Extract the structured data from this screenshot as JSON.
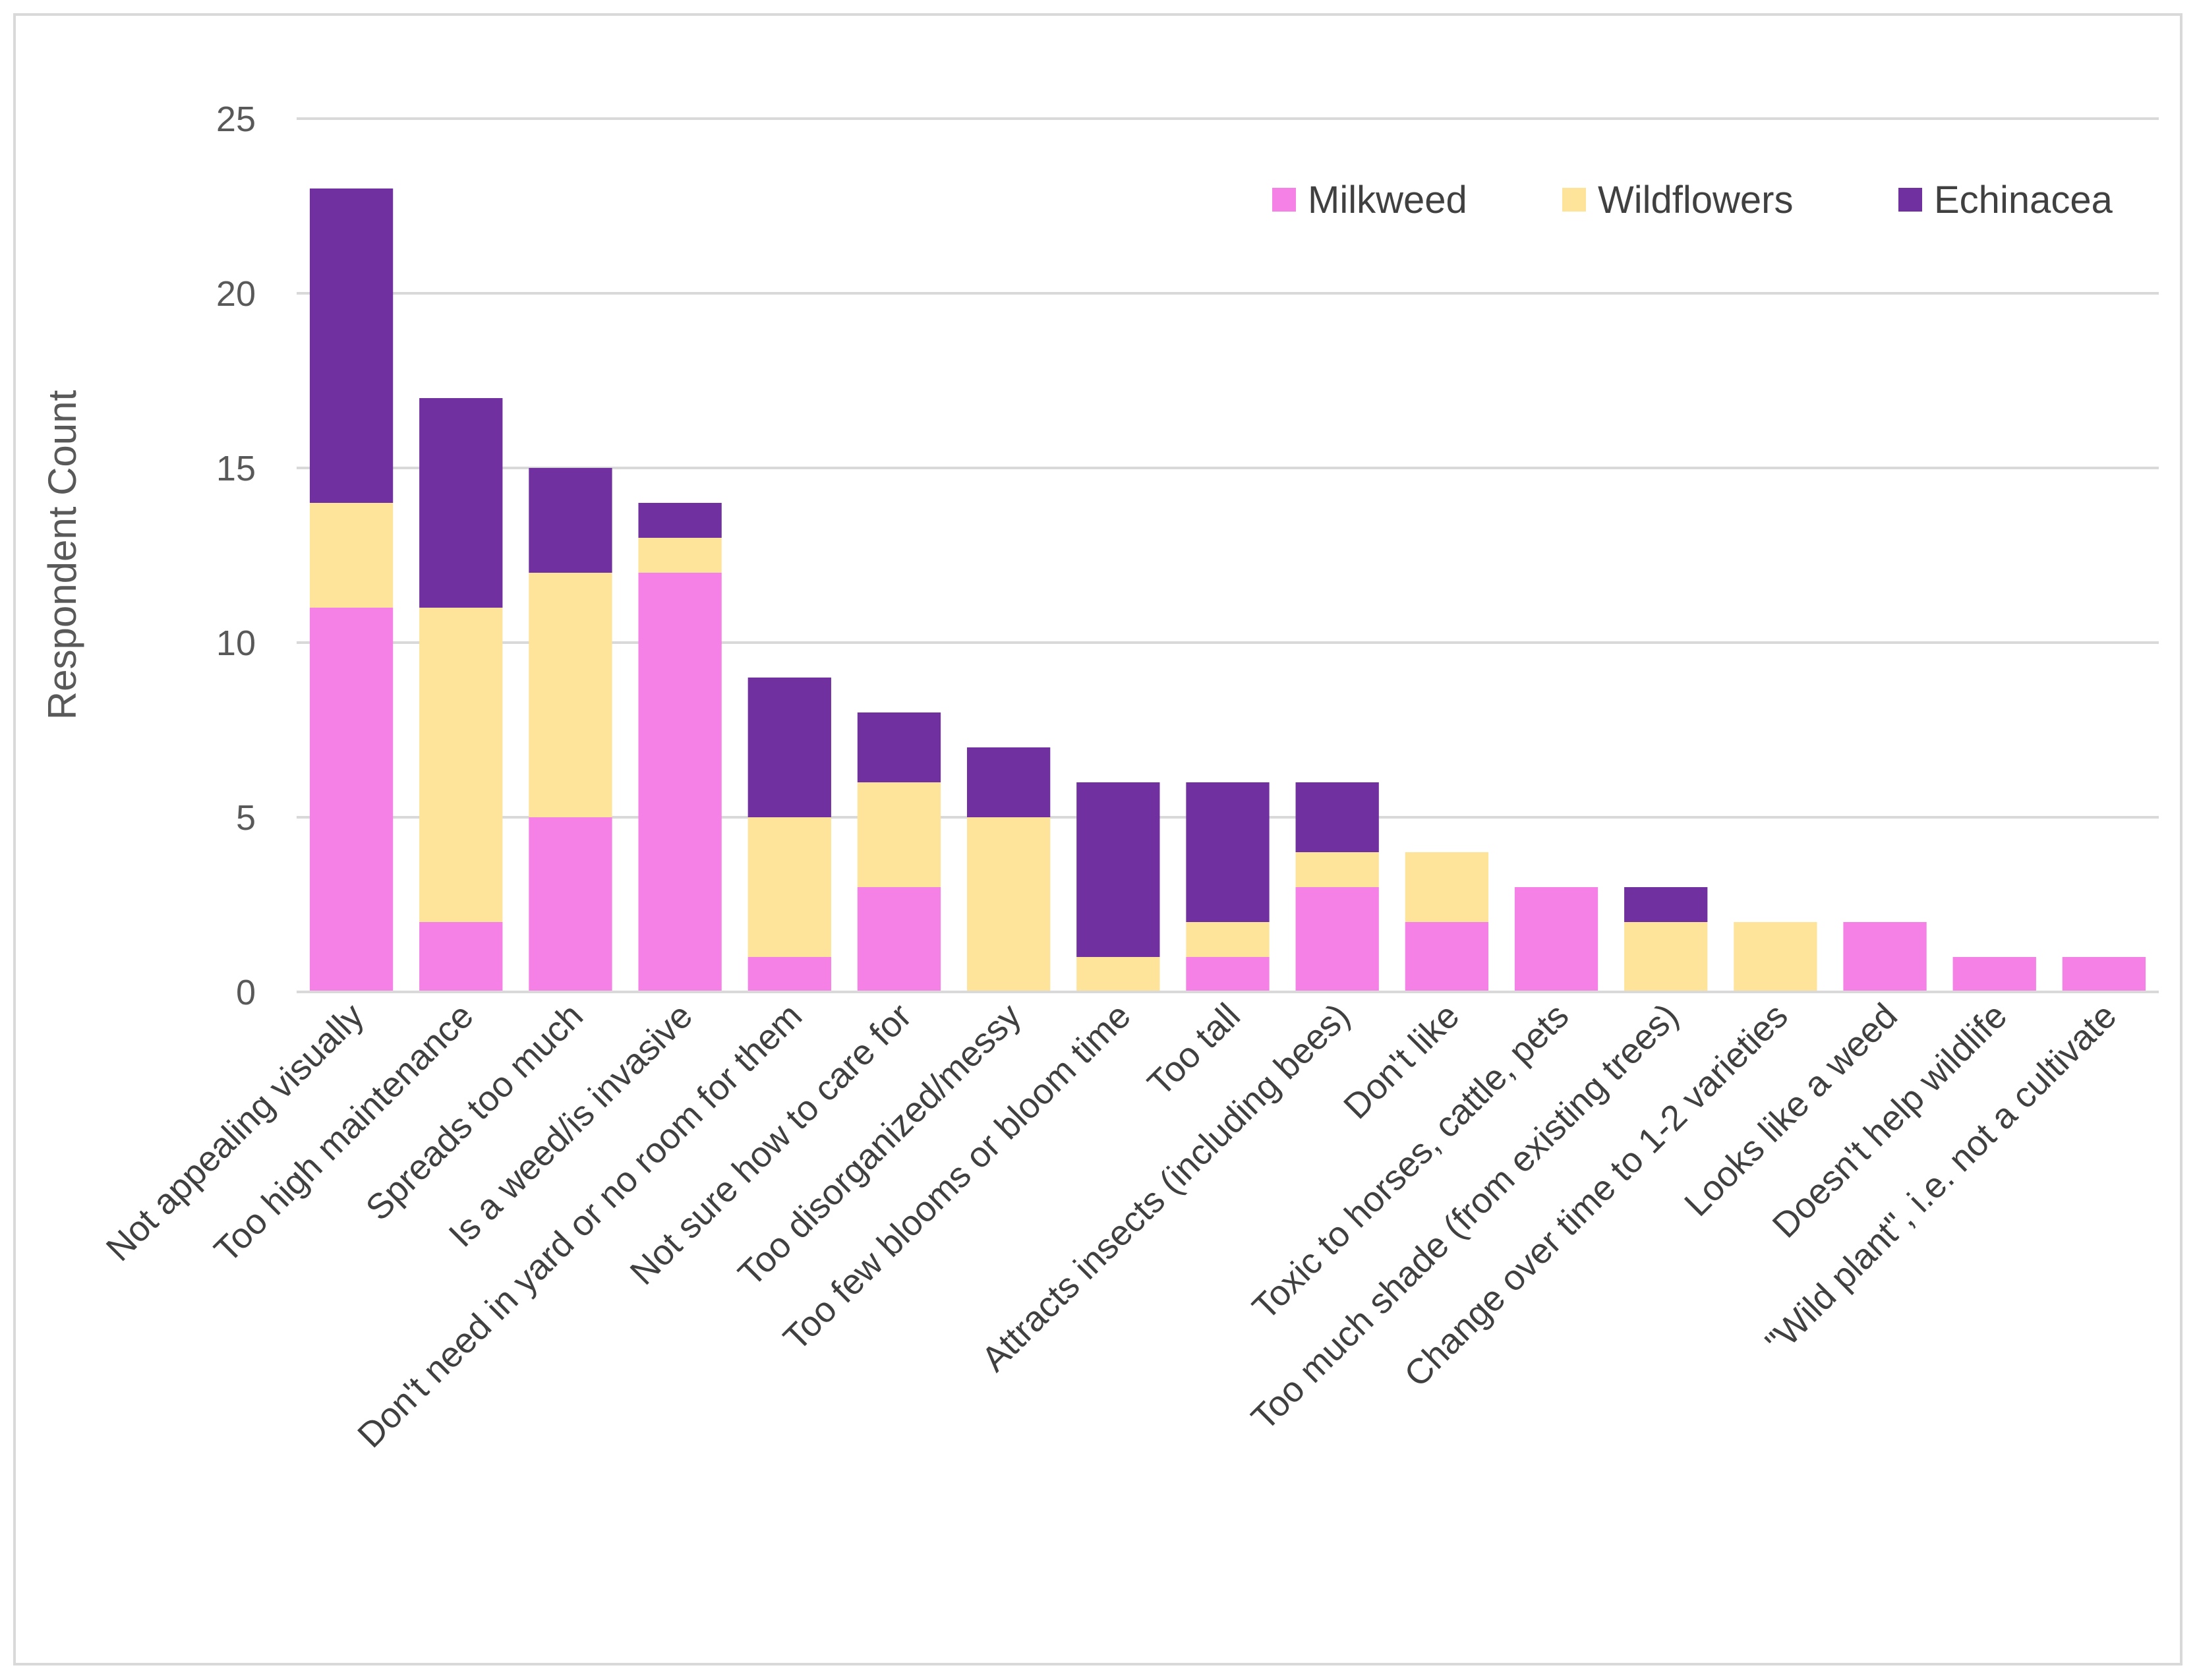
{
  "chart_data": {
    "type": "bar",
    "stacked": true,
    "ylabel": "Respondent Count",
    "ylim": [
      0,
      25
    ],
    "yticks": [
      0,
      5,
      10,
      15,
      20,
      25
    ],
    "grid": true,
    "legend_position": "top-right",
    "categories": [
      "Not appealing visually",
      "Too high maintenance",
      "Spreads too much",
      "Is a weed/is invasive",
      "Don't need in yard or no room for them",
      "Not sure how to care for",
      "Too disorganized/messy",
      "Too few blooms or bloom time",
      "Too tall",
      "Attracts insects (including bees)",
      "Don't like",
      "Toxic to horses, cattle, pets",
      "Too much shade (from existing trees)",
      "Change over time to 1-2 varieties",
      "Looks like a weed",
      "Doesn't help wildlife",
      "\"Wild plant\", i.e. not a cultivate"
    ],
    "series": [
      {
        "name": "Milkweed",
        "color": "#f580e6",
        "values": [
          11,
          2,
          5,
          12,
          1,
          3,
          0,
          0,
          1,
          3,
          2,
          3,
          0,
          0,
          2,
          1,
          1
        ]
      },
      {
        "name": "Wildflowers",
        "color": "#fde49a",
        "values": [
          3,
          9,
          7,
          1,
          4,
          3,
          5,
          1,
          1,
          1,
          2,
          0,
          2,
          2,
          0,
          0,
          0
        ]
      },
      {
        "name": "Echinacea",
        "color": "#7030a0",
        "values": [
          9,
          6,
          3,
          1,
          4,
          2,
          2,
          5,
          4,
          2,
          0,
          0,
          1,
          0,
          0,
          0,
          0
        ]
      }
    ]
  }
}
